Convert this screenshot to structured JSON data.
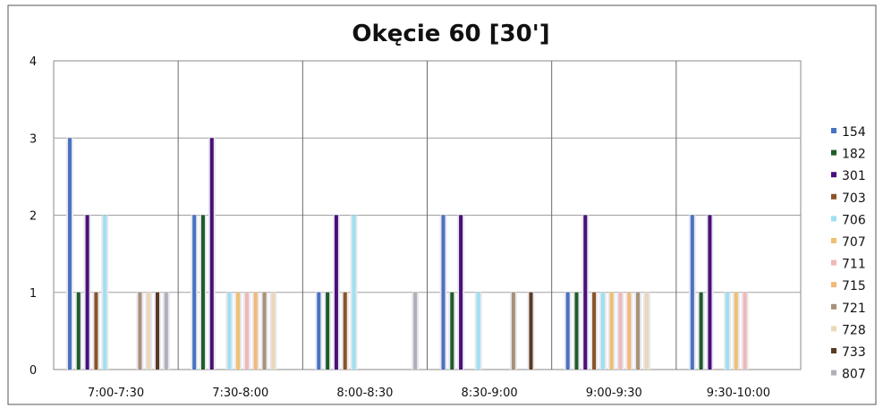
{
  "chart_data": {
    "type": "bar",
    "title": "Okęcie 60 [30']",
    "xlabel": "",
    "ylabel": "",
    "ylim": [
      0,
      4
    ],
    "yticks": [
      "0",
      "1",
      "2",
      "3",
      "4"
    ],
    "grid": true,
    "legend_position": "right",
    "categories": [
      "7:00-7:30",
      "7:30-8:00",
      "8:00-8:30",
      "8:30-9:00",
      "9:00-9:30",
      "9:30-10:00"
    ],
    "series": [
      {
        "name": "154",
        "color": "#4a72c0",
        "values": [
          3,
          2,
          1,
          2,
          1,
          2
        ]
      },
      {
        "name": "182",
        "color": "#1f5c2a",
        "values": [
          1,
          2,
          1,
          1,
          1,
          1
        ]
      },
      {
        "name": "301",
        "color": "#4b0f7a",
        "values": [
          2,
          3,
          2,
          2,
          2,
          2
        ]
      },
      {
        "name": "703",
        "color": "#8a5428",
        "values": [
          1,
          0,
          1,
          0,
          1,
          0
        ]
      },
      {
        "name": "706",
        "color": "#9fe0f0",
        "values": [
          2,
          1,
          2,
          1,
          1,
          1
        ]
      },
      {
        "name": "707",
        "color": "#f0c070",
        "values": [
          0,
          1,
          0,
          0,
          1,
          1
        ]
      },
      {
        "name": "711",
        "color": "#f0b8b8",
        "values": [
          0,
          1,
          0,
          0,
          1,
          1
        ]
      },
      {
        "name": "715",
        "color": "#f5b878",
        "values": [
          0,
          1,
          0,
          0,
          1,
          0
        ]
      },
      {
        "name": "721",
        "color": "#a8907a",
        "values": [
          1,
          1,
          0,
          1,
          1,
          0
        ]
      },
      {
        "name": "728",
        "color": "#ead8b8",
        "values": [
          1,
          1,
          0,
          0,
          1,
          0
        ]
      },
      {
        "name": "733",
        "color": "#5a3a20",
        "values": [
          1,
          0,
          0,
          1,
          0,
          0
        ]
      },
      {
        "name": "807",
        "color": "#b0b0b8",
        "values": [
          1,
          0,
          1,
          0,
          0,
          0
        ]
      }
    ]
  }
}
